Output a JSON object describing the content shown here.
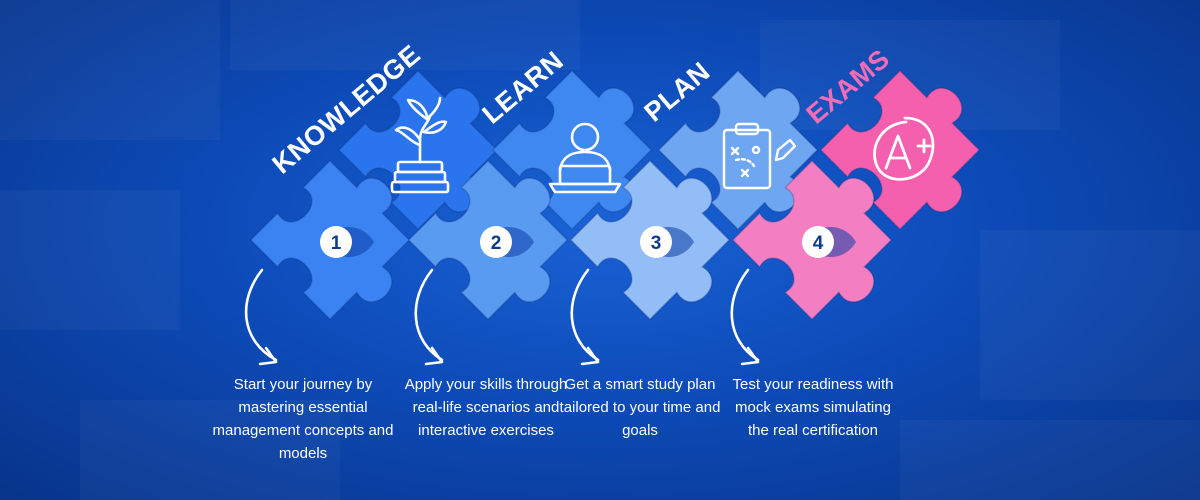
{
  "steps": [
    {
      "title": "KNOWLEDGE",
      "number": "1",
      "icon": "plant-on-books-icon",
      "description": "Start your journey by mastering essential management concepts and models"
    },
    {
      "title": "LEARN",
      "number": "2",
      "icon": "person-at-laptop-icon",
      "description": "Apply your skills through real-life scenarios and interactive exercises"
    },
    {
      "title": "PLAN",
      "number": "3",
      "icon": "clipboard-strategy-icon",
      "description": "Get a smart study plan tailored to your time and goals"
    },
    {
      "title": "EXAMS",
      "number": "4",
      "icon": "a-plus-grade-icon",
      "description": "Test your readiness with mock exams simulating the real certification"
    }
  ],
  "colors": {
    "background": "#0d4bb8",
    "knowledge_top": "#2a74ee",
    "knowledge_bottom": "#3b83f3",
    "learn_top": "#3f88f0",
    "learn_bottom": "#5a9bf2",
    "plan_top": "#6fa6f2",
    "plan_bottom": "#93bdf6",
    "exams_top": "#f45fae",
    "exams_bottom": "#f37ec2",
    "exams_title": "#f36cb8",
    "number_text": "#0d3c8e"
  }
}
